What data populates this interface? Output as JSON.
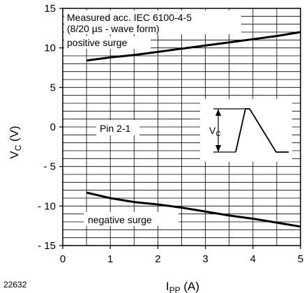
{
  "chart_data": {
    "type": "line",
    "xlabel_main": "I",
    "xlabel_sub": "PP",
    "xlabel_unit": " (A)",
    "ylabel_main": "V",
    "ylabel_sub": "C",
    "ylabel_unit": " (V)",
    "xlim": [
      0,
      5
    ],
    "ylim": [
      -15,
      15
    ],
    "x_ticks": [
      0,
      1,
      2,
      3,
      4,
      5
    ],
    "x_tick_labels": [
      "0",
      "1",
      "2",
      "3",
      "4",
      "5"
    ],
    "y_ticks": [
      -15,
      -10,
      -5,
      0,
      5,
      10,
      15
    ],
    "y_tick_labels": [
      "- 15",
      "- 10",
      "- 5",
      "0",
      "5",
      "10",
      "15"
    ],
    "grid": true,
    "series": [
      {
        "name": "positive surge",
        "x": [
          0.5,
          1,
          1.5,
          2,
          2.5,
          3,
          3.5,
          4,
          4.5,
          5
        ],
        "y": [
          8.4,
          8.8,
          9.1,
          9.5,
          9.9,
          10.3,
          10.7,
          11.1,
          11.5,
          12.0
        ]
      },
      {
        "name": "negative surge",
        "x": [
          0.5,
          1,
          1.5,
          2,
          2.5,
          3,
          3.5,
          4,
          4.5,
          5
        ],
        "y": [
          -8.3,
          -9.0,
          -9.5,
          -9.8,
          -10.2,
          -10.7,
          -11.2,
          -11.6,
          -12.1,
          -12.6
        ]
      }
    ],
    "annotations": {
      "measured_line1": "Measured acc. IEC 6100-4-5",
      "measured_line2": "(8/20 µs - wave form)",
      "positive": "positive surge",
      "negative": "negative surge",
      "pin": "Pin 2-1",
      "inset_label_main": "V",
      "inset_label_sub": "C"
    },
    "figure_id": "22632"
  }
}
